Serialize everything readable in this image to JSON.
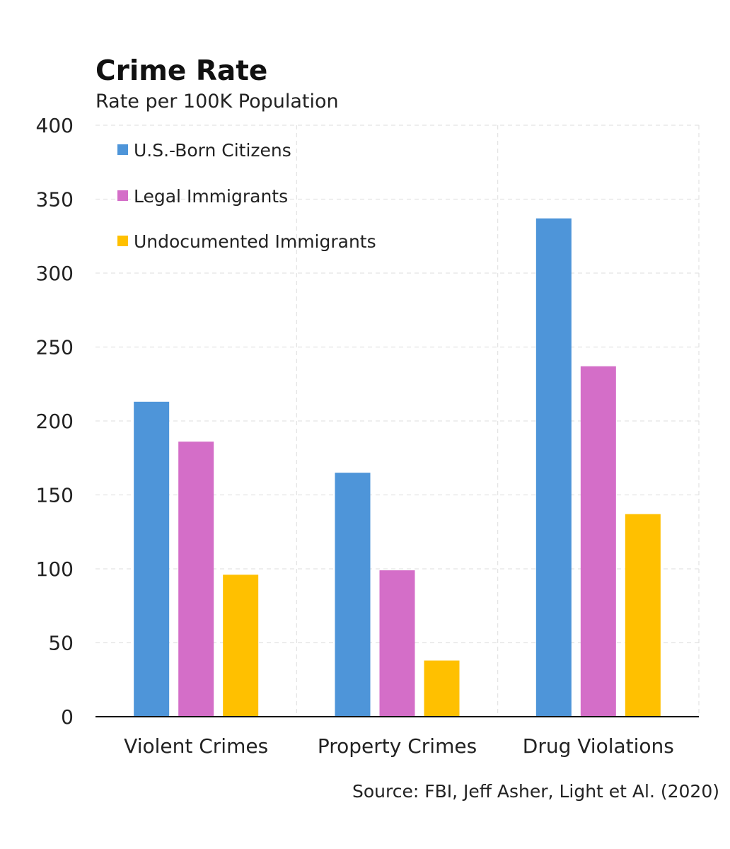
{
  "chart_data": {
    "type": "bar",
    "title": "Crime Rate",
    "subtitle": "Rate per 100K Population",
    "categories": [
      "Violent Crimes",
      "Property Crimes",
      "Drug Violations"
    ],
    "series": [
      {
        "name": "U.S.-Born Citizens",
        "color": "#4e95d9",
        "values": [
          213,
          165,
          337
        ]
      },
      {
        "name": "Legal Immigrants",
        "color": "#d46ec8",
        "values": [
          186,
          99,
          237
        ]
      },
      {
        "name": "Undocumented Immigrants",
        "color": "#ffc000",
        "values": [
          96,
          38,
          137
        ]
      }
    ],
    "ylim": [
      0,
      400
    ],
    "yticks": [
      0,
      50,
      100,
      150,
      200,
      250,
      300,
      350,
      400
    ],
    "xlabel": "",
    "ylabel": "",
    "grid": true,
    "legend_position": "top-left",
    "source": "Source: FBI, Jeff Asher, Light et Al. (2020)"
  }
}
